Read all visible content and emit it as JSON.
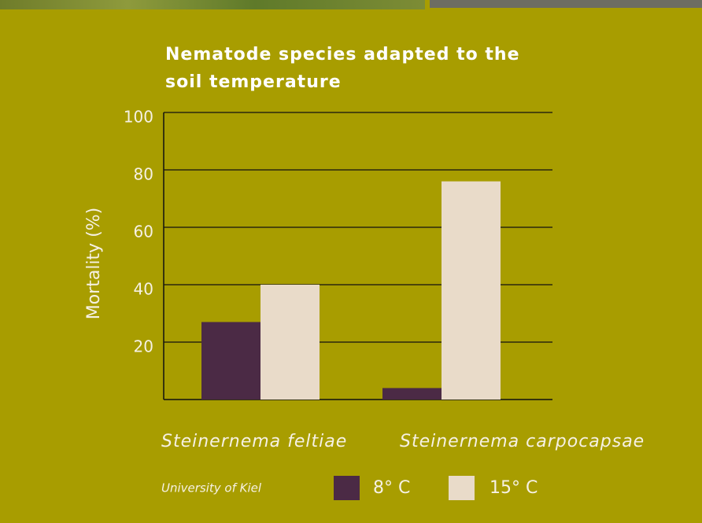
{
  "chart_data": {
    "type": "bar",
    "title": "Nematode species adapted to the soil temperature",
    "y_label": "Mortality (%)",
    "source": "University of Kiel",
    "categories": [
      "Steinernema feltiae",
      "Steinernema carpocapsae"
    ],
    "series": [
      {
        "name": "8° C",
        "color": "#4b2a45",
        "values": [
          27,
          4
        ]
      },
      {
        "name": "15° C",
        "color": "#e9dbc9",
        "values": [
          40,
          76
        ]
      }
    ],
    "ylim": [
      0,
      100
    ],
    "yticks": [
      20,
      40,
      60,
      80,
      100
    ],
    "grid": true
  }
}
